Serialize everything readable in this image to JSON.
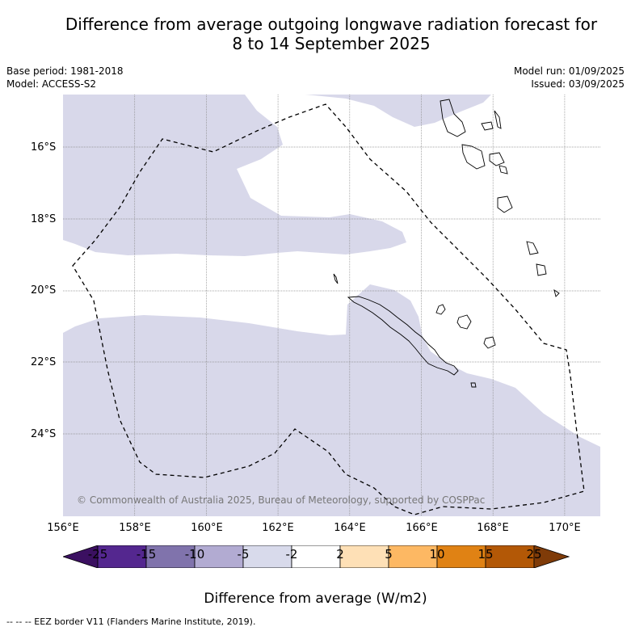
{
  "title": {
    "line1": "Difference from average outgoing longwave radiation forecast for",
    "line2": "8 to 14 September 2025"
  },
  "meta": {
    "base_period": "Base period: 1981-2018",
    "model": "Model: ACCESS-S2",
    "model_run": "Model run: 01/09/2025",
    "issued": "Issued: 03/09/2025"
  },
  "map": {
    "y_axis_labels": [
      "16°S",
      "18°S",
      "20°S",
      "22°S",
      "24°S"
    ],
    "x_axis_labels": [
      "156°E",
      "158°E",
      "160°E",
      "162°E",
      "164°E",
      "166°E",
      "168°E",
      "170°E"
    ],
    "shading_color": "#d8d8ea",
    "copyright": "© Commonwealth of Australia 2025, Bureau of Meteorology, supported by COSPPac"
  },
  "colorbar": {
    "ticks": [
      "-25",
      "-15",
      "-10",
      "-5",
      "-2",
      "2",
      "5",
      "10",
      "15",
      "25"
    ],
    "colors": [
      "#3b1061",
      "#54278f",
      "#8073ac",
      "#b2abd2",
      "#d8daeb",
      "#ffffff",
      "#fee0b6",
      "#fdb863",
      "#e08214",
      "#b35806",
      "#7f3b08"
    ],
    "label": "Difference from average (W/m2)"
  },
  "footnote": "--  --  -- EEZ border V11 (Flanders Marine Institute, 2019)."
}
